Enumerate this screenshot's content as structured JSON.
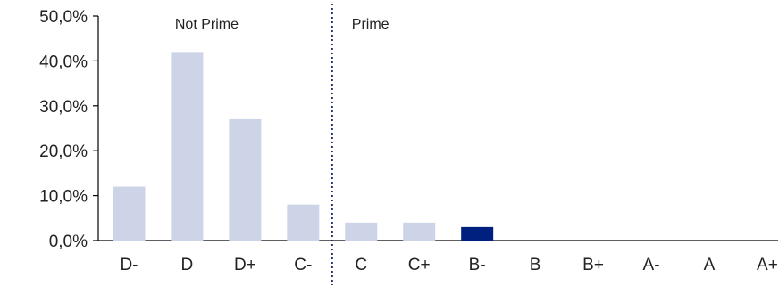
{
  "chart_data": {
    "type": "bar",
    "categories": [
      "D-",
      "D",
      "D+",
      "C-",
      "C",
      "C+",
      "B-",
      "B",
      "B+",
      "A-",
      "A",
      "A+"
    ],
    "values": [
      12.0,
      42.0,
      27.0,
      8.0,
      4.0,
      4.0,
      3.0,
      0,
      0,
      0,
      0,
      0
    ],
    "ylim": [
      0,
      50
    ],
    "y_ticks": [
      0,
      10,
      20,
      30,
      40,
      50
    ],
    "y_tick_labels": [
      "0,0%",
      "10,0%",
      "20,0%",
      "30,0%",
      "40,0%",
      "50,0%"
    ],
    "highlight_category": "B-",
    "colors": {
      "bar": "#cdd4e8",
      "highlight": "#002080",
      "divider": "#1f2d6b",
      "axis": "#000000",
      "text": "#222222"
    },
    "annotations": {
      "left_region": "Not Prime",
      "right_region": "Prime"
    },
    "divider_between": [
      "C-",
      "C"
    ],
    "grid": false,
    "legend": "none",
    "title": "",
    "xlabel": "",
    "ylabel": ""
  }
}
